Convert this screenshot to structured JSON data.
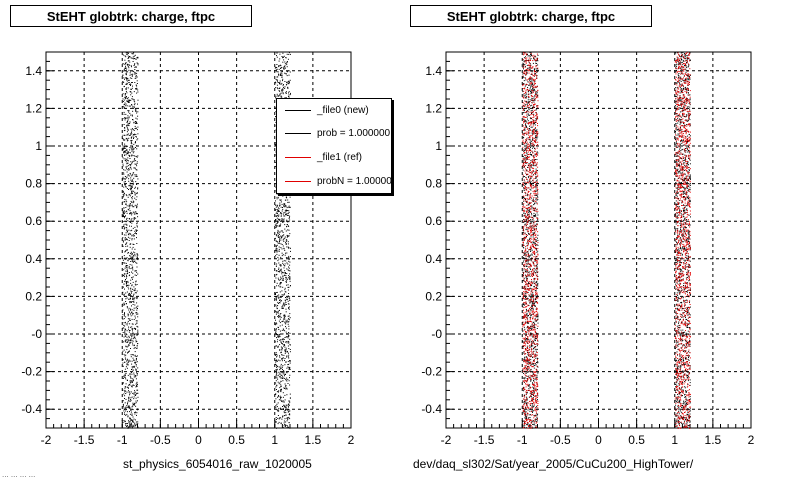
{
  "colors": {
    "new": "#000000",
    "ref": "#e00000",
    "grid": "#000000"
  },
  "footer": {
    "text": "... ... ... ..."
  },
  "legend": {
    "entries": [
      {
        "label": "_file0 (new)",
        "color": "#000000"
      },
      {
        "label": "prob = 1.000000",
        "color": "#000000"
      },
      {
        "label": "_file1 (ref)",
        "color": "#e00000"
      },
      {
        "label": "probN = 1.000000",
        "color": "#e00000"
      }
    ]
  },
  "chart_data": [
    {
      "type": "scatter",
      "title": "StEHT globtrk: charge, ftpc",
      "xlabel": "st_physics_6054016_raw_1020005",
      "ylabel": "",
      "xlim": [
        -2,
        2
      ],
      "ylim": [
        -0.5,
        1.5
      ],
      "x_ticks": [
        "-2",
        "-1.5",
        "-1",
        "-0.5",
        "0",
        "0.5",
        "1",
        "1.5",
        "2"
      ],
      "y_ticks": [
        "-0.4",
        "-0.2",
        "-0",
        "0.2",
        "0.4",
        "0.6",
        "0.8",
        "1",
        "1.2",
        "1.4"
      ],
      "grid": true,
      "legend_position": "top-right",
      "series": [
        {
          "name": "_file0 (new)",
          "color": "#000000",
          "bands": [
            [
              -1.0,
              -0.8
            ],
            [
              1.0,
              1.2
            ]
          ]
        }
      ]
    },
    {
      "type": "scatter",
      "title": "StEHT globtrk: charge, ftpc",
      "xlabel": "dev/daq_sl302/Sat/year_2005/CuCu200_HighTower/",
      "ylabel": "",
      "xlim": [
        -2,
        2
      ],
      "ylim": [
        -0.5,
        1.5
      ],
      "x_ticks": [
        "-2",
        "-1.5",
        "-1",
        "-0.5",
        "0",
        "0.5",
        "1",
        "1.5",
        "2"
      ],
      "y_ticks": [
        "-0.4",
        "-0.2",
        "-0",
        "0.2",
        "0.4",
        "0.6",
        "0.8",
        "1",
        "1.2",
        "1.4"
      ],
      "grid": true,
      "series": [
        {
          "name": "_file0 (new)",
          "color": "#000000",
          "bands": [
            [
              -1.0,
              -0.8
            ],
            [
              1.0,
              1.2
            ]
          ]
        },
        {
          "name": "_file1 (ref)",
          "color": "#e00000",
          "bands": [
            [
              -1.0,
              -0.8
            ],
            [
              1.0,
              1.2
            ]
          ]
        }
      ]
    }
  ]
}
